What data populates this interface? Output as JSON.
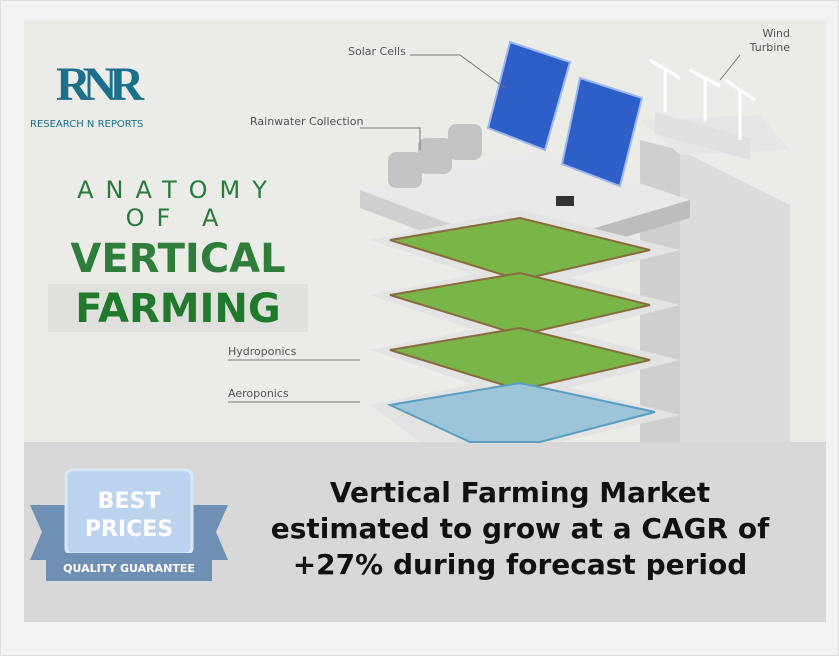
{
  "logo": {
    "mark": "RNR",
    "name": "RESEARCH N REPORTS"
  },
  "infographic": {
    "title_line1": "ANATOMY",
    "title_line2": "OF A",
    "title_line3": "VERTICAL",
    "title_line4": "FARMING",
    "labels": {
      "solar": "Solar Cells",
      "wind_line1": "Wind",
      "wind_line2": "Turbine",
      "rain": "Rainwater Collection",
      "hydro": "Hydroponics",
      "aero": "Aeroponics"
    }
  },
  "badge": {
    "line1": "BEST",
    "line2": "PRICES",
    "ribbon": "QUALITY GUARANTEE"
  },
  "headline": {
    "line1": "Vertical Farming Market",
    "line2": "estimated to grow at a CAGR of",
    "line3": "+27% during forecast period"
  }
}
